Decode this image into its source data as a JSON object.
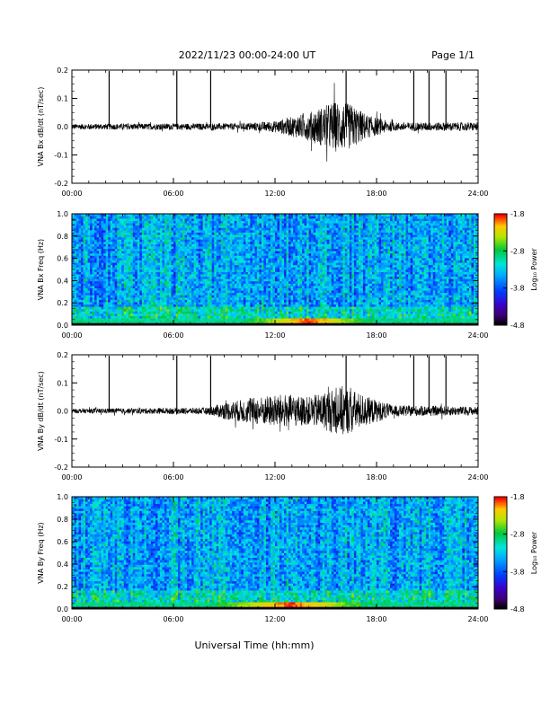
{
  "header": {
    "title": "2022/11/23  00:00-24:00 UT",
    "page": "Page 1/1"
  },
  "xaxis": {
    "label": "Universal Time (hh:mm)",
    "range": [
      0,
      24
    ],
    "ticks": [
      0,
      6,
      12,
      18,
      24
    ],
    "tick_labels": [
      "00:00",
      "06:00",
      "12:00",
      "18:00",
      "24:00"
    ]
  },
  "colorbar": {
    "label": "Log₁₀ Power",
    "range": [
      -4.8,
      -1.8
    ],
    "ticks": [
      -4.8,
      -3.8,
      -2.8,
      -1.8
    ],
    "tick_labels": [
      "-4.8",
      "-3.8",
      "-2.8",
      "-1.8"
    ]
  },
  "chart_data": [
    {
      "type": "line",
      "id": "bx-waveform",
      "ylabel": "VNA Bx dB/dt (nT/sec)",
      "ylim": [
        -0.2,
        0.2
      ],
      "yticks": [
        -0.2,
        -0.1,
        0.0,
        0.1,
        0.2
      ],
      "ytick_labels": [
        "-0.2",
        "-0.1",
        "0.0",
        "0.1",
        "0.2"
      ],
      "spikes_hours": [
        2.2,
        6.2,
        8.2,
        16.2,
        20.2,
        21.1,
        22.1
      ],
      "envelope": [
        {
          "t": 0,
          "amp": 0.01
        },
        {
          "t": 10,
          "amp": 0.012
        },
        {
          "t": 12,
          "amp": 0.02
        },
        {
          "t": 14,
          "amp": 0.05
        },
        {
          "t": 15.5,
          "amp": 0.09
        },
        {
          "t": 16.5,
          "amp": 0.08
        },
        {
          "t": 17.5,
          "amp": 0.04
        },
        {
          "t": 19,
          "amp": 0.015
        },
        {
          "t": 24,
          "amp": 0.015
        }
      ]
    },
    {
      "type": "heatmap",
      "id": "bx-spectrogram",
      "ylabel": "VNA Bx Freq (Hz)",
      "ylim": [
        0.0,
        1.0
      ],
      "yticks": [
        0.0,
        0.2,
        0.4,
        0.6,
        0.8,
        1.0
      ],
      "ytick_labels": [
        "0.0",
        "0.2",
        "0.4",
        "0.6",
        "0.8",
        "1.0"
      ],
      "low_freq_peak_hours": [
        10,
        18
      ]
    },
    {
      "type": "line",
      "id": "by-waveform",
      "ylabel": "VNA By dB/dt (nT/sec)",
      "ylim": [
        -0.2,
        0.2
      ],
      "yticks": [
        -0.2,
        -0.1,
        0.0,
        0.1,
        0.2
      ],
      "ytick_labels": [
        "-0.2",
        "-0.1",
        "0.0",
        "0.1",
        "0.2"
      ],
      "spikes_hours": [
        2.2,
        6.2,
        8.2,
        16.2,
        20.2,
        21.1,
        22.1
      ],
      "envelope": [
        {
          "t": 0,
          "amp": 0.008
        },
        {
          "t": 8,
          "amp": 0.012
        },
        {
          "t": 9,
          "amp": 0.03
        },
        {
          "t": 11,
          "amp": 0.05
        },
        {
          "t": 12.5,
          "amp": 0.06
        },
        {
          "t": 14,
          "amp": 0.05
        },
        {
          "t": 16,
          "amp": 0.09
        },
        {
          "t": 17.5,
          "amp": 0.05
        },
        {
          "t": 19,
          "amp": 0.02
        },
        {
          "t": 24,
          "amp": 0.015
        }
      ]
    },
    {
      "type": "heatmap",
      "id": "by-spectrogram",
      "ylabel": "VNA By Freq (Hz)",
      "ylim": [
        0.0,
        1.0
      ],
      "yticks": [
        0.0,
        0.2,
        0.4,
        0.6,
        0.8,
        1.0
      ],
      "ytick_labels": [
        "0.0",
        "0.2",
        "0.4",
        "0.6",
        "0.8",
        "1.0"
      ],
      "low_freq_peak_hours": [
        8,
        18
      ]
    }
  ]
}
